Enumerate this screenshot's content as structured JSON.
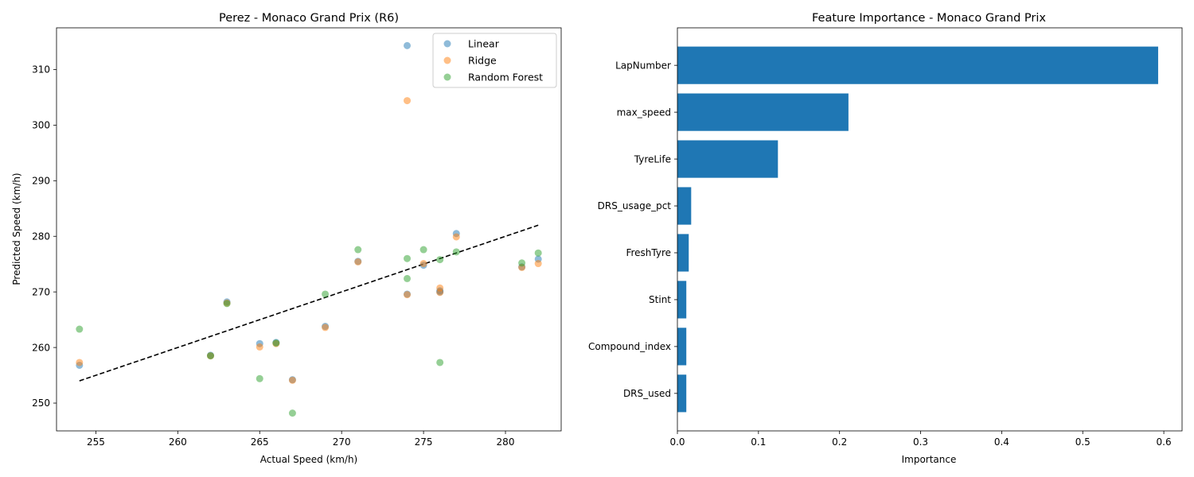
{
  "chart_data": [
    {
      "type": "scatter",
      "title": "Perez - Monaco Grand Prix (R6)",
      "xlabel": "Actual Speed (km/h)",
      "ylabel": "Predicted Speed (km/h)",
      "xlim": [
        252.6,
        283.4
      ],
      "ylim": [
        245,
        317.5
      ],
      "xticks": [
        255,
        260,
        265,
        270,
        275,
        280
      ],
      "yticks": [
        250,
        260,
        270,
        280,
        290,
        300,
        310
      ],
      "legend_position": "top-right",
      "reference_line": {
        "style": "dashed",
        "color": "#000000",
        "x": [
          254,
          282
        ],
        "y": [
          254,
          282
        ]
      },
      "series": [
        {
          "name": "Linear",
          "color": "#1f77b4",
          "points": [
            [
              254,
              256.8
            ],
            [
              262,
              258.6
            ],
            [
              263,
              268.2
            ],
            [
              265,
              260.7
            ],
            [
              266,
              260.9
            ],
            [
              267,
              254.2
            ],
            [
              269,
              263.8
            ],
            [
              271,
              275.5
            ],
            [
              274,
              314.3
            ],
            [
              274,
              269.6
            ],
            [
              275,
              274.8
            ],
            [
              276,
              270.2
            ],
            [
              276,
              270.0
            ],
            [
              277,
              280.5
            ],
            [
              281,
              274.5
            ],
            [
              282,
              275.9
            ]
          ]
        },
        {
          "name": "Ridge",
          "color": "#ff7f0e",
          "points": [
            [
              254,
              257.3
            ],
            [
              262,
              258.5
            ],
            [
              263,
              268.0
            ],
            [
              265,
              260.1
            ],
            [
              266,
              260.7
            ],
            [
              267,
              254.1
            ],
            [
              269,
              263.6
            ],
            [
              271,
              275.4
            ],
            [
              274,
              304.4
            ],
            [
              274,
              269.5
            ],
            [
              275,
              275.1
            ],
            [
              276,
              270.7
            ],
            [
              276,
              269.9
            ],
            [
              277,
              279.9
            ],
            [
              281,
              274.4
            ],
            [
              282,
              275.1
            ]
          ]
        },
        {
          "name": "Random Forest",
          "color": "#2ca02c",
          "points": [
            [
              254,
              263.3
            ],
            [
              262,
              258.5
            ],
            [
              263,
              267.9
            ],
            [
              265,
              254.4
            ],
            [
              266,
              260.8
            ],
            [
              267,
              248.2
            ],
            [
              269,
              269.6
            ],
            [
              271,
              277.6
            ],
            [
              274,
              276.0
            ],
            [
              274,
              272.4
            ],
            [
              275,
              277.6
            ],
            [
              276,
              275.8
            ],
            [
              276,
              257.3
            ],
            [
              277,
              277.2
            ],
            [
              281,
              275.2
            ],
            [
              282,
              277.0
            ]
          ]
        }
      ]
    },
    {
      "type": "bar",
      "orientation": "horizontal",
      "title": "Feature Importance - Monaco Grand Prix",
      "xlabel": "Importance",
      "ylabel": "",
      "xlim": [
        0,
        0.6225
      ],
      "xticks": [
        "0.0",
        "0.1",
        "0.2",
        "0.3",
        "0.4",
        "0.5",
        "0.6"
      ],
      "color": "#1f77b4",
      "categories": [
        "LapNumber",
        "max_speed",
        "TyreLife",
        "DRS_usage_pct",
        "FreshTyre",
        "Stint",
        "Compound_index",
        "DRS_used"
      ],
      "values": [
        0.593,
        0.211,
        0.124,
        0.017,
        0.014,
        0.011,
        0.011,
        0.011
      ]
    }
  ]
}
